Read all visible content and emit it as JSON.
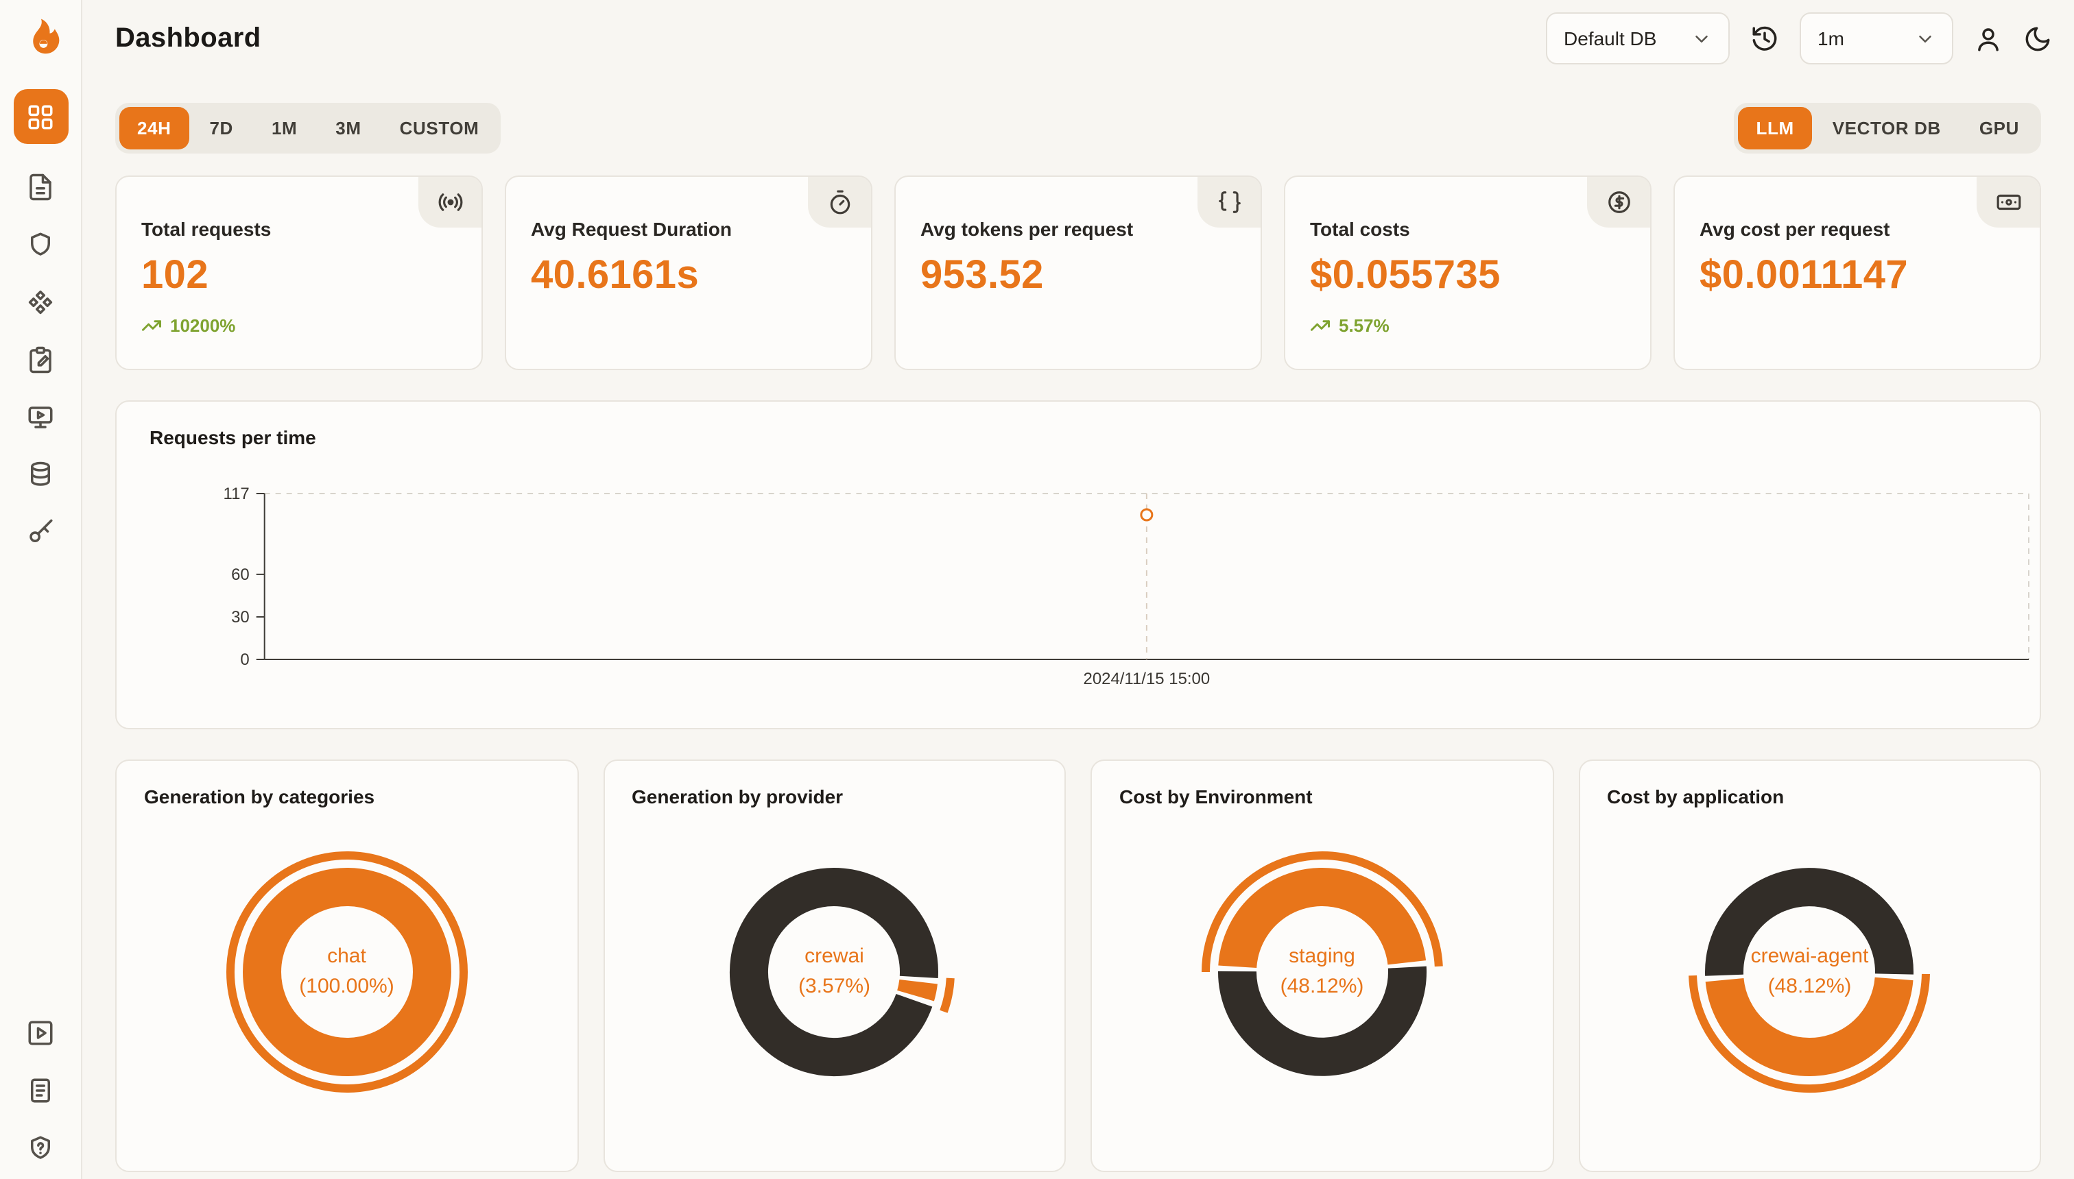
{
  "app": {
    "title": "Dashboard"
  },
  "header": {
    "db_select": "Default DB",
    "interval_select": "1m",
    "icons": [
      "history-icon",
      "user-icon",
      "moon-icon"
    ]
  },
  "sidebar": {
    "items": [
      {
        "icon": "dashboard-icon",
        "active": true
      },
      {
        "icon": "requests-icon"
      },
      {
        "icon": "exceptions-icon"
      },
      {
        "icon": "prompt-hub-icon"
      },
      {
        "icon": "evaluations-icon"
      },
      {
        "icon": "playground-icon"
      },
      {
        "icon": "databases-icon"
      },
      {
        "icon": "api-keys-icon"
      }
    ],
    "bottom_items": [
      {
        "icon": "demo-video-icon"
      },
      {
        "icon": "docs-icon"
      },
      {
        "icon": "support-icon"
      }
    ]
  },
  "filters": {
    "time_ranges": [
      "24H",
      "7D",
      "1M",
      "3M",
      "CUSTOM"
    ],
    "active_time_range": "24H",
    "sources": [
      "LLM",
      "VECTOR DB",
      "GPU"
    ],
    "active_source": "LLM"
  },
  "stats": [
    {
      "label": "Total requests",
      "value": "102",
      "trend": "10200%",
      "icon": "radio-icon"
    },
    {
      "label": "Avg Request Duration",
      "value": "40.6161s",
      "icon": "timer-icon"
    },
    {
      "label": "Avg tokens per request",
      "value": "953.52",
      "icon": "braces-icon"
    },
    {
      "label": "Total costs",
      "value": "$0.055735",
      "trend": "5.57%",
      "icon": "dollar-circle-icon"
    },
    {
      "label": "Avg cost per request",
      "value": "$0.0011147",
      "icon": "banknote-icon"
    }
  ],
  "colors": {
    "accent": "#E8751A",
    "dark_segment": "#322D28",
    "positive": "#7FA330"
  },
  "chart_data": [
    {
      "type": "line",
      "title": "Requests per time",
      "x": [
        "2024/11/15 15:00"
      ],
      "series": [
        {
          "name": "requests",
          "values": [
            102
          ]
        }
      ],
      "ylim": [
        0,
        117
      ],
      "yticks": [
        0,
        30,
        60,
        117
      ],
      "grid": "dashed-border",
      "marker_color": "#E8751A"
    },
    {
      "type": "pie",
      "title": "Generation by categories",
      "center_label": "chat",
      "center_pct": "(100.00%)",
      "start_deg": 0,
      "segments": [
        {
          "label": "chat",
          "value": 100.0,
          "color": "#E8751A"
        }
      ]
    },
    {
      "type": "pie",
      "title": "Generation by provider",
      "center_label": "crewai",
      "center_pct": "(3.57%)",
      "start_deg": 95,
      "segments": [
        {
          "label": "crewai",
          "value": 3.57,
          "color": "#E8751A"
        },
        {
          "label": "",
          "value": 96.43,
          "color": "#322D28"
        }
      ]
    },
    {
      "type": "pie",
      "title": "Cost by Environment",
      "center_label": "staging",
      "center_pct": "(48.12%)",
      "start_deg": 272,
      "segments": [
        {
          "label": "staging",
          "value": 48.12,
          "color": "#E8751A"
        },
        {
          "label": "",
          "value": 51.88,
          "color": "#322D28"
        }
      ]
    },
    {
      "type": "pie",
      "title": "Cost by application",
      "center_label": "crewai-agent",
      "center_pct": "(48.12%)",
      "start_deg": 93,
      "segments": [
        {
          "label": "crewai-agent",
          "value": 48.12,
          "color": "#E8751A"
        },
        {
          "label": "",
          "value": 51.88,
          "color": "#322D28"
        }
      ]
    }
  ]
}
